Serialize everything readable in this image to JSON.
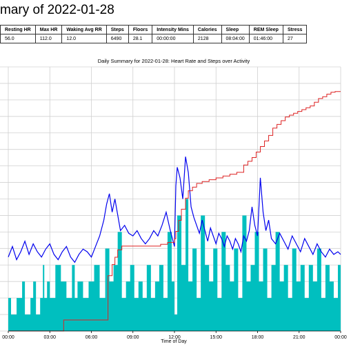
{
  "page": {
    "title": "mary of 2022-01-28"
  },
  "stats_table": {
    "headers": [
      "Resting HR",
      "Max HR",
      "Waking Avg RR",
      "Steps",
      "Floors",
      "Intensity Mins",
      "Calories",
      "Sleep",
      "REM Sleep",
      "Stress"
    ],
    "values": [
      "56.0",
      "112.0",
      "12.0",
      "6490",
      "28.1",
      "00:00:00",
      "2128",
      "08:04:00",
      "01:46:00",
      "27"
    ]
  },
  "chart_data": {
    "type": "line",
    "title": "Daily Summary for 2022-01-28: Heart Rate and Steps over Activity",
    "xlabel": "Time of Day",
    "ylabel": "",
    "x_ticks": [
      "00:00",
      "03:00",
      "06:00",
      "09:00",
      "12:00",
      "15:00",
      "18:00",
      "21:00",
      "00:00"
    ],
    "xlim_hours": [
      0,
      24
    ],
    "grid": true,
    "colors": {
      "activity": "#00bfbf",
      "heart_rate": "#0000ee",
      "steps": "#dd2222"
    },
    "activity_level": {
      "x_hours": [
        0,
        0.2,
        0.6,
        1.0,
        1.2,
        1.6,
        1.8,
        2.0,
        2.3,
        2.5,
        2.6,
        2.8,
        3.0,
        3.4,
        3.8,
        4.2,
        4.6,
        4.8,
        5.0,
        5.4,
        5.8,
        6.2,
        6.6,
        7.0,
        7.3,
        7.6,
        7.9,
        8.2,
        8.5,
        8.8,
        9.1,
        9.4,
        9.7,
        10.0,
        10.3,
        10.6,
        10.9,
        11.2,
        11.5,
        11.8,
        12.0,
        12.2,
        12.5,
        12.8,
        13.0,
        13.3,
        13.6,
        13.9,
        14.2,
        14.5,
        14.8,
        15.1,
        15.4,
        15.7,
        16.0,
        16.3,
        16.6,
        16.9,
        17.2,
        17.5,
        17.8,
        18.1,
        18.4,
        18.7,
        19.0,
        19.3,
        19.6,
        19.9,
        20.2,
        20.5,
        20.8,
        21.1,
        21.4,
        21.7,
        22.0,
        22.3,
        22.6,
        22.9,
        23.2,
        23.5,
        23.8,
        24.0
      ],
      "values": [
        1.0,
        0.5,
        1.0,
        1.5,
        0.5,
        1.0,
        1.5,
        0.5,
        1.0,
        2.0,
        1.0,
        1.5,
        1.0,
        2.0,
        1.5,
        1.0,
        2.0,
        1.0,
        1.5,
        1.0,
        1.5,
        2.0,
        1.0,
        2.5,
        1.5,
        2.0,
        3.0,
        1.0,
        1.5,
        2.0,
        1.0,
        1.5,
        1.0,
        2.0,
        1.0,
        1.5,
        2.0,
        1.0,
        3.0,
        1.5,
        0.5,
        3.5,
        2.0,
        4.0,
        1.5,
        2.5,
        1.0,
        3.5,
        2.0,
        1.5,
        2.5,
        1.0,
        3.0,
        2.0,
        1.5,
        2.5,
        1.0,
        3.5,
        1.5,
        2.0,
        3.0,
        1.5,
        2.5,
        1.0,
        2.0,
        3.0,
        1.5,
        2.0,
        1.0,
        2.5,
        1.5,
        2.0,
        1.0,
        2.0,
        1.5,
        2.5,
        1.0,
        2.0,
        1.5,
        1.0,
        2.0,
        1.5
      ]
    },
    "heart_rate": {
      "x_hours": [
        0,
        0.3,
        0.6,
        0.9,
        1.2,
        1.5,
        1.8,
        2.1,
        2.4,
        2.7,
        3.0,
        3.3,
        3.6,
        3.9,
        4.2,
        4.5,
        4.8,
        5.1,
        5.4,
        5.7,
        6.0,
        6.3,
        6.6,
        6.9,
        7.1,
        7.3,
        7.5,
        7.7,
        7.9,
        8.1,
        8.4,
        8.7,
        9.0,
        9.3,
        9.6,
        9.9,
        10.2,
        10.5,
        10.8,
        11.1,
        11.4,
        11.7,
        12.0,
        12.1,
        12.2,
        12.4,
        12.6,
        12.8,
        13.0,
        13.2,
        13.4,
        13.6,
        13.8,
        14.0,
        14.2,
        14.4,
        14.6,
        14.8,
        15.0,
        15.2,
        15.4,
        15.6,
        15.8,
        16.0,
        16.2,
        16.4,
        16.6,
        16.8,
        17.0,
        17.2,
        17.4,
        17.6,
        17.8,
        18.0,
        18.2,
        18.4,
        18.6,
        18.8,
        19.0,
        19.3,
        19.6,
        19.9,
        20.2,
        20.5,
        20.8,
        21.1,
        21.4,
        21.7,
        22.0,
        22.3,
        22.6,
        22.9,
        23.2,
        23.5,
        23.8,
        24.0
      ],
      "values": [
        0.28,
        0.32,
        0.27,
        0.3,
        0.34,
        0.29,
        0.33,
        0.3,
        0.28,
        0.31,
        0.33,
        0.29,
        0.27,
        0.3,
        0.32,
        0.28,
        0.26,
        0.29,
        0.31,
        0.3,
        0.28,
        0.32,
        0.36,
        0.42,
        0.48,
        0.52,
        0.45,
        0.5,
        0.44,
        0.38,
        0.4,
        0.37,
        0.36,
        0.38,
        0.35,
        0.33,
        0.35,
        0.38,
        0.36,
        0.4,
        0.45,
        0.38,
        0.32,
        0.55,
        0.62,
        0.58,
        0.5,
        0.66,
        0.6,
        0.47,
        0.43,
        0.4,
        0.37,
        0.42,
        0.38,
        0.34,
        0.39,
        0.36,
        0.33,
        0.37,
        0.35,
        0.32,
        0.36,
        0.34,
        0.31,
        0.35,
        0.33,
        0.3,
        0.36,
        0.34,
        0.38,
        0.47,
        0.4,
        0.36,
        0.58,
        0.45,
        0.38,
        0.42,
        0.35,
        0.33,
        0.37,
        0.34,
        0.31,
        0.36,
        0.33,
        0.3,
        0.35,
        0.32,
        0.29,
        0.33,
        0.3,
        0.28,
        0.31,
        0.29,
        0.3,
        0.29
      ]
    },
    "steps": {
      "x_hours": [
        0,
        1.0,
        2.0,
        3.0,
        4.0,
        5.0,
        6.0,
        7.0,
        7.2,
        7.5,
        7.7,
        7.9,
        8.2,
        8.5,
        8.8,
        9.0,
        9.5,
        10.0,
        10.5,
        11.0,
        11.5,
        12.0,
        12.1,
        12.3,
        12.5,
        12.8,
        13.0,
        13.3,
        13.6,
        14.0,
        14.5,
        15.0,
        15.5,
        16.0,
        16.5,
        17.0,
        17.3,
        17.6,
        17.9,
        18.2,
        18.5,
        18.8,
        19.1,
        19.4,
        19.7,
        20.0,
        20.3,
        20.6,
        20.9,
        21.2,
        21.5,
        21.8,
        22.1,
        22.4,
        22.7,
        23.0,
        23.3,
        23.6,
        24.0
      ],
      "values": [
        0,
        0,
        0,
        0,
        300,
        300,
        300,
        300,
        1500,
        1800,
        2000,
        2200,
        2300,
        2300,
        2300,
        2300,
        2300,
        2300,
        2300,
        2350,
        2400,
        2500,
        2700,
        3000,
        3300,
        3600,
        3800,
        3900,
        4000,
        4050,
        4100,
        4150,
        4200,
        4250,
        4300,
        4500,
        4600,
        4700,
        4850,
        5000,
        5150,
        5300,
        5500,
        5600,
        5700,
        5800,
        5850,
        5900,
        5950,
        6000,
        6050,
        6100,
        6200,
        6300,
        6350,
        6420,
        6470,
        6490,
        6490
      ]
    }
  }
}
